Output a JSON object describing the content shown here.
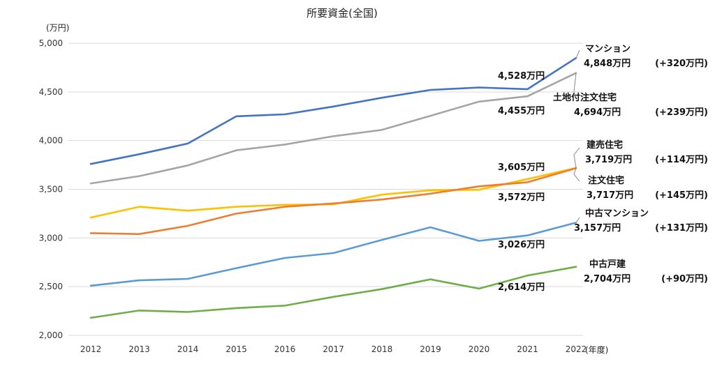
{
  "chart_data": {
    "type": "line",
    "title": "所要資金(全国)",
    "ylabel": "(万円)",
    "xlabel": "(年度)",
    "ylim": [
      2000,
      5000
    ],
    "yticks": [
      2000,
      2500,
      3000,
      3500,
      4000,
      4500,
      5000
    ],
    "ytick_labels": [
      "2,000",
      "2,500",
      "3,000",
      "3,500",
      "4,000",
      "4,500",
      "5,000"
    ],
    "categories": [
      "2012",
      "2013",
      "2014",
      "2015",
      "2016",
      "2017",
      "2018",
      "2019",
      "2020",
      "2021",
      "2022"
    ],
    "grid": true,
    "series": [
      {
        "name": "マンション",
        "color": "#4472c4",
        "values": [
          3760,
          3860,
          3970,
          4250,
          4270,
          4350,
          4440,
          4520,
          4545,
          4528,
          4848
        ],
        "label_2021": "4,528万円",
        "label_2022": "4,848万円",
        "change": "(+320万円)"
      },
      {
        "name": "土地付注文住宅",
        "color": "#a5a5a5",
        "values": [
          3560,
          3635,
          3745,
          3900,
          3960,
          4045,
          4110,
          4255,
          4400,
          4455,
          4694
        ],
        "label_2021": "4,455万円",
        "label_2022": "4,694万円",
        "change": "(+239万円)"
      },
      {
        "name": "建売住宅",
        "color": "#ffc000",
        "values": [
          3210,
          3320,
          3280,
          3320,
          3340,
          3345,
          3445,
          3490,
          3495,
          3605,
          3719
        ],
        "label_2021": "3,605万円",
        "label_2022": "3,719万円",
        "change": "(+114万円)"
      },
      {
        "name": "注文住宅",
        "color": "#ed7d31",
        "values": [
          3050,
          3040,
          3125,
          3250,
          3320,
          3355,
          3395,
          3455,
          3530,
          3572,
          3717
        ],
        "label_2021": "3,572万円",
        "label_2022": "3,717万円",
        "change": "(+145万円)"
      },
      {
        "name": "中古マンション",
        "color": "#5b9bd5",
        "values": [
          2510,
          2565,
          2580,
          2690,
          2795,
          2845,
          2980,
          3110,
          2970,
          3026,
          3157
        ],
        "label_2021": "3,026万円",
        "label_2022": "3,157万円",
        "change": "(+131万円)"
      },
      {
        "name": "中古戸建",
        "color": "#70ad47",
        "values": [
          2180,
          2255,
          2240,
          2280,
          2305,
          2395,
          2475,
          2575,
          2480,
          2614,
          2704
        ],
        "label_2021": "2,614万円",
        "label_2022": "2,704万円",
        "change": "(+90万円)"
      }
    ]
  }
}
